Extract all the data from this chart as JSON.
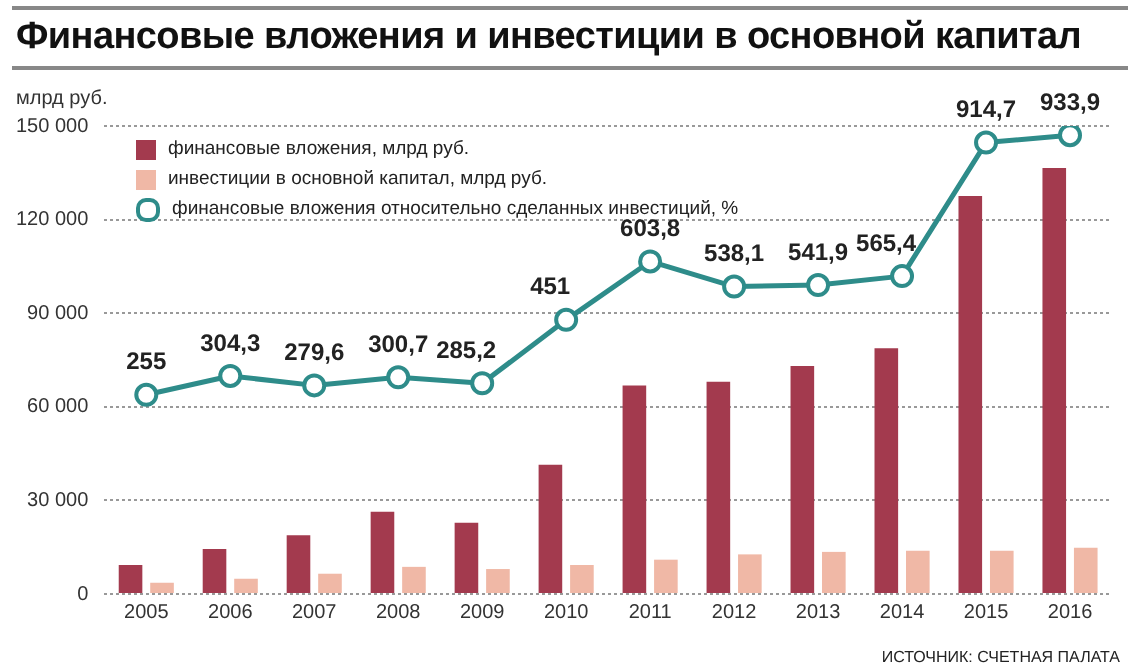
{
  "chart_data": {
    "type": "bar",
    "title": "Финансовые вложения и инвестиции в основной капитал",
    "ylabel": "млрд руб.",
    "categories": [
      "2005",
      "2006",
      "2007",
      "2008",
      "2009",
      "2010",
      "2011",
      "2012",
      "2013",
      "2014",
      "2015",
      "2016"
    ],
    "series": [
      {
        "name": "финансовые вложения, млрд руб.",
        "color": "#a33a4e",
        "values": [
          9300,
          14400,
          18800,
          26400,
          22800,
          41400,
          66800,
          68000,
          73100,
          78800,
          127600,
          136500
        ]
      },
      {
        "name": "инвестиции в основной капитал, млрд руб.",
        "color": "#f0b8a6",
        "values": [
          3600,
          4900,
          6500,
          8700,
          8000,
          9300,
          11000,
          12700,
          13500,
          13900,
          13900,
          14800
        ]
      },
      {
        "name": "финансовые вложения относительно сделанных инвестиций, %",
        "type": "line",
        "axis": "y2",
        "color": "#2e8c8a",
        "marker": "circle",
        "values": [
          255,
          304.3,
          279.6,
          300.7,
          285.2,
          451,
          603.8,
          538.1,
          541.9,
          565.4,
          914.7,
          933.9
        ],
        "value_labels": [
          "255",
          "304,3",
          "279,6",
          "300,7",
          "285,2",
          "451",
          "603,8",
          "538,1",
          "541,9",
          "565,4",
          "914,7",
          "933,9"
        ]
      }
    ],
    "ylim": [
      0,
      150000
    ],
    "yticks": [
      {
        "value": 0,
        "label": "0"
      },
      {
        "value": 30000,
        "label": "30 000"
      },
      {
        "value": 60000,
        "label": "60 000"
      },
      {
        "value": 90000,
        "label": "90 000"
      },
      {
        "value": 120000,
        "label": "120 000"
      },
      {
        "value": 150000,
        "label": "150 000"
      }
    ],
    "y2lim": [
      -266,
      958
    ],
    "grid": "y",
    "legend": "top left",
    "tick_labels": "xy",
    "annotations": [
      "ИСТОЧНИК: СЧЕТНАЯ ПАЛАТА"
    ]
  }
}
